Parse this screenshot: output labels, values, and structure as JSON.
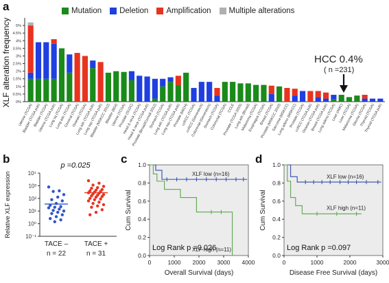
{
  "panels": {
    "a": "a",
    "b": "b",
    "c": "c",
    "d": "d"
  },
  "colors": {
    "mutation": "#1a8a1a",
    "deletion": "#1f3fe0",
    "amplification": "#e8331f",
    "multiple": "#b0b0b0",
    "blue_line": "#2f4aa8",
    "green_line": "#5aa64b",
    "dot_tace_minus": "#2f55c8",
    "dot_tace_plus": "#e8331f"
  },
  "legend": [
    {
      "label": "Mutation",
      "color": "#1a8a1a"
    },
    {
      "label": "Deletion",
      "color": "#1f3fe0"
    },
    {
      "label": "Amplification",
      "color": "#e8331f"
    },
    {
      "label": "Multiple alterations",
      "color": "#b0b0b0"
    }
  ],
  "annotations": {
    "hcc_label": "HCC 0.4%",
    "hcc_n": "( n =231)"
  },
  "chart_data": [
    {
      "panel": "a",
      "type": "bar",
      "stacked": true,
      "ylabel": "XLF alteration frequency",
      "ylim": [
        0,
        5.5
      ],
      "yticks": [
        "0%",
        "0.5%",
        "1%",
        "1.5%",
        "2%",
        "2.5%",
        "3%",
        "3.5%",
        "4%",
        "4.5%",
        "5%"
      ],
      "categories": [
        "Uterine (TCGA)",
        "Bladder (TCGA pub)",
        "Bladder (TCGA)",
        "Uterine (TCGA pub)",
        "Lung sq (TCGA)",
        "Lung adc (TCGA)",
        "Cervical (TCGA)",
        "Ovarian (TCGA)",
        "Lung adc (TCGA pub)",
        "Lung squ (TCGA pub)",
        "Bladder (MSKCC 2012)",
        "Bladder (BGI)",
        "Uterine (TCGA)",
        "Prostate (SU2C)",
        "Head & neck (TCGA)",
        "Head & neck (TCGA pub)",
        "Prostate (Broad/Cornell 2012)",
        "Stomach (TCGA)",
        "Lung adc (TCGA pub)",
        "Lung squ (TCGA pub)",
        "Prostate (MICH)",
        "ccRCC (TCGA)",
        "ccRCC (Genentech)",
        "Colorectal (Genentech)",
        "Stomach (TCGA)",
        "Colorectal (TCGA)",
        "CCLE",
        "Prostate (TCGA 2015)",
        "Lung adc (Broad)",
        "Melanoma (TCGA)",
        "Esophagus (TCGA)",
        "Breast (TCGA)",
        "Prostate (MSKCC 2010)",
        "Sarcoma (MSKCC)",
        "Lung adeno (MSKCC)",
        "Prostate (TCGA)",
        "ccRCC (TCGA pub)",
        "Ovarian (TCGA pub)",
        "Breast (TCGA pub)",
        "Lung adeno (TCGA)",
        "Liver (AMC)",
        "Liver (TCGA)",
        "Melanoma (TCGA)",
        "Glioma (TCGA)",
        "Thyroid (TCGA)",
        "Thyroid (TCGA pub)"
      ],
      "series": [
        {
          "name": "Mutation",
          "values": [
            1.5,
            1.5,
            1.5,
            1.5,
            3.5,
            1.9,
            0,
            0,
            2.2,
            0,
            1.9,
            2.0,
            1.95,
            1.4,
            0,
            0,
            0.2,
            1.0,
            1.3,
            1.1,
            1.9,
            0,
            0,
            0,
            0,
            1.3,
            1.3,
            1.2,
            1.2,
            1.1,
            1.1,
            0,
            1.0,
            0,
            0,
            0,
            0,
            0,
            0,
            0.15,
            0.45,
            0.3,
            0.4,
            0,
            0,
            0
          ]
        },
        {
          "name": "Deletion",
          "values": [
            0.4,
            2.4,
            2.4,
            2.3,
            0,
            1.2,
            0,
            0,
            0.5,
            0,
            0,
            0,
            0,
            0.6,
            1.7,
            1.65,
            1.3,
            0.5,
            0.3,
            0,
            0,
            0.9,
            1.3,
            1.3,
            0.4,
            0,
            0,
            0,
            0,
            0,
            0,
            0.5,
            0,
            0,
            0.4,
            0.7,
            0,
            0.3,
            0.2,
            0.3,
            0,
            0,
            0,
            0.2,
            0.2,
            0.2
          ]
        },
        {
          "name": "Amplification",
          "values": [
            3.1,
            0,
            0,
            0.3,
            0,
            0,
            3.2,
            3.0,
            0,
            2.6,
            0,
            0,
            0,
            0,
            0,
            0,
            0,
            0,
            0,
            0.6,
            0,
            0,
            0,
            0,
            0.5,
            0,
            0,
            0,
            0,
            0,
            0,
            0.55,
            0,
            0.9,
            0.45,
            0,
            0.7,
            0.4,
            0.4,
            0,
            0,
            0,
            0,
            0.25,
            0,
            0
          ]
        },
        {
          "name": "Multiple alterations",
          "values": [
            0.2,
            0,
            0,
            0,
            0,
            0,
            0,
            0,
            0,
            0,
            0,
            0,
            0,
            0,
            0,
            0,
            0,
            0,
            0,
            0,
            0,
            0,
            0,
            0,
            0,
            0,
            0,
            0,
            0,
            0,
            0,
            0,
            0,
            0,
            0,
            0,
            0,
            0,
            0,
            0,
            0,
            0,
            0,
            0,
            0,
            0
          ]
        }
      ]
    },
    {
      "panel": "b",
      "type": "scatter",
      "ylabel": "Relative XLF expression",
      "ylim": [
        -1,
        4
      ],
      "yscale": "log10",
      "ytick_labels": [
        "10⁻¹",
        "10⁰",
        "10¹",
        "10²",
        "10³",
        "10⁴"
      ],
      "categories": [
        "TACE –",
        "TACE +"
      ],
      "n_labels": [
        "n = 22",
        "n = 31"
      ],
      "pvalue": "p =0.025",
      "groups": [
        {
          "name": "TACE –",
          "log10_values": [
            2.9,
            2.6,
            2.55,
            2.3,
            2.1,
            1.9,
            1.8,
            1.6,
            1.45,
            1.35,
            1.3,
            1.25,
            1.15,
            1.05,
            1.0,
            0.9,
            0.8,
            0.7,
            0.55,
            0.4,
            0.3,
            0.15
          ],
          "mean_log10": 1.55
        },
        {
          "name": "TACE +",
          "log10_values": [
            3.4,
            3.2,
            3.05,
            2.95,
            2.85,
            2.8,
            2.7,
            2.65,
            2.6,
            2.55,
            2.5,
            2.45,
            2.4,
            2.35,
            2.3,
            2.25,
            2.2,
            2.15,
            2.1,
            2.0,
            1.95,
            1.9,
            1.8,
            1.7,
            1.6,
            1.5,
            1.4,
            1.3,
            1.1,
            0.9,
            0.7
          ],
          "mean_log10": 2.45
        }
      ]
    },
    {
      "panel": "c",
      "type": "line",
      "step": true,
      "xlabel": "Overall Survival (days)",
      "ylabel": "Cum Survival",
      "xlim": [
        0,
        4000
      ],
      "ylim": [
        0,
        1.0
      ],
      "xticks": [
        0,
        1000,
        2000,
        3000,
        4000
      ],
      "yticks": [
        0.0,
        0.2,
        0.4,
        0.6,
        0.8,
        1.0
      ],
      "annotation": "Log Rank p =0.026",
      "series": [
        {
          "name": "XLF low (n=16)",
          "x": [
            0,
            250,
            250,
            500,
            500,
            3950
          ],
          "y": [
            1.0,
            1.0,
            0.94,
            0.94,
            0.84,
            0.84
          ],
          "censor_x": [
            700,
            1100,
            1500,
            1900,
            2300,
            2700,
            3100,
            3500,
            3800
          ]
        },
        {
          "name": "XLF high (n=11)",
          "x": [
            0,
            150,
            150,
            300,
            300,
            600,
            600,
            1250,
            1250,
            1900,
            1900,
            3350,
            3350
          ],
          "y": [
            1.0,
            1.0,
            0.9,
            0.9,
            0.82,
            0.82,
            0.73,
            0.73,
            0.64,
            0.64,
            0.48,
            0.48,
            0.0
          ],
          "censor_x": [
            2500,
            2900
          ]
        }
      ]
    },
    {
      "panel": "d",
      "type": "line",
      "step": true,
      "xlabel": "Disease Free Survival (days)",
      "ylabel": "Cum Survival",
      "xlim": [
        0,
        3000
      ],
      "ylim": [
        0,
        1.0
      ],
      "xticks": [
        0,
        1000,
        2000,
        3000
      ],
      "yticks": [
        0.0,
        0.2,
        0.4,
        0.6,
        0.8,
        1.0
      ],
      "annotation": "Log Rank p =0.097",
      "series": [
        {
          "name": "XLF low (n=16)",
          "x": [
            0,
            200,
            200,
            400,
            400,
            2950
          ],
          "y": [
            1.0,
            1.0,
            0.87,
            0.87,
            0.81,
            0.81
          ],
          "censor_x": [
            650,
            900,
            1150,
            1400,
            1700,
            1950,
            2200,
            2500,
            2850
          ]
        },
        {
          "name": "XLF high (n=11)",
          "x": [
            0,
            100,
            100,
            200,
            200,
            350,
            350,
            550,
            550,
            2350
          ],
          "y": [
            1.0,
            1.0,
            0.82,
            0.82,
            0.64,
            0.64,
            0.55,
            0.55,
            0.46,
            0.46
          ],
          "censor_x": [
            1000,
            1600,
            2200
          ]
        }
      ]
    }
  ]
}
